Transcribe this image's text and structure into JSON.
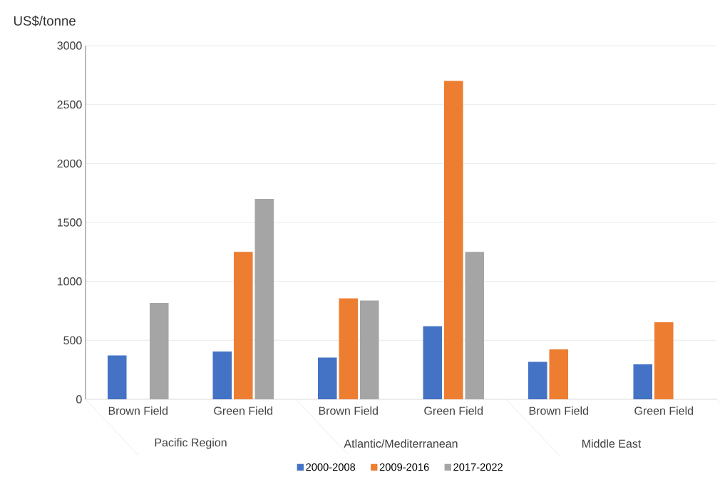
{
  "chart_data": {
    "type": "bar",
    "ylabel": "US$/tonne",
    "categories": [
      "Brown Field",
      "Green Field",
      "Brown Field",
      "Green Field",
      "Brown Field",
      "Green Field"
    ],
    "annotations": [
      "Pacific Region",
      "Atlantic/Mediterranean",
      "Middle East"
    ],
    "series": [
      {
        "name": "2000-2008",
        "color": "#4472c4",
        "values": [
          372,
          405,
          354,
          620,
          317,
          296
        ]
      },
      {
        "name": "2009-2016",
        "color": "#ed7d31",
        "values": [
          null,
          1250,
          856,
          2700,
          423,
          654
        ]
      },
      {
        "name": "2017-2022",
        "color": "#a5a5a5",
        "values": [
          816,
          1700,
          837,
          1250,
          null,
          null
        ]
      }
    ],
    "ylim": [
      0,
      3000
    ],
    "yticks": [
      0,
      500,
      1000,
      1500,
      2000,
      2500,
      3000
    ],
    "grid": "y",
    "legend": "bottom"
  }
}
